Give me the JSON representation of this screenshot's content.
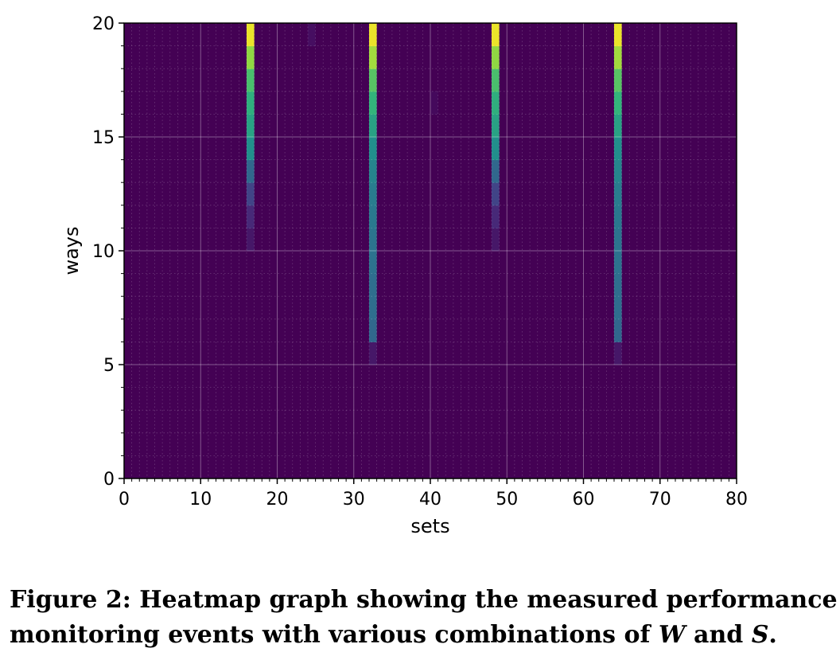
{
  "chart_data": {
    "type": "heatmap",
    "title": "",
    "xlabel": "sets",
    "ylabel": "ways",
    "xlim": [
      0,
      80
    ],
    "ylim": [
      0,
      20
    ],
    "xticks": [
      0,
      10,
      20,
      30,
      40,
      50,
      60,
      70,
      80
    ],
    "yticks": [
      0,
      5,
      10,
      15,
      20
    ],
    "grid": true,
    "colormap": "viridis",
    "value_range": [
      0,
      1
    ],
    "background_value": 0,
    "columns": [
      {
        "set": 16,
        "cells": [
          [
            10,
            0.08
          ],
          [
            11,
            0.15
          ],
          [
            12,
            0.25
          ],
          [
            13,
            0.42
          ],
          [
            14,
            0.62
          ],
          [
            15,
            0.68
          ],
          [
            16,
            0.72
          ],
          [
            17,
            0.78
          ],
          [
            18,
            0.88
          ],
          [
            19,
            0.98
          ]
        ]
      },
      {
        "set": 24,
        "cells": [
          [
            19,
            0.05
          ]
        ]
      },
      {
        "set": 32,
        "cells": [
          [
            5,
            0.08
          ],
          [
            6,
            0.42
          ],
          [
            7,
            0.45
          ],
          [
            8,
            0.45
          ],
          [
            9,
            0.47
          ],
          [
            10,
            0.48
          ],
          [
            11,
            0.5
          ],
          [
            12,
            0.52
          ],
          [
            13,
            0.56
          ],
          [
            14,
            0.62
          ],
          [
            15,
            0.68
          ],
          [
            16,
            0.74
          ],
          [
            17,
            0.8
          ],
          [
            18,
            0.9
          ],
          [
            19,
            0.98
          ]
        ]
      },
      {
        "set": 40,
        "cells": [
          [
            16,
            0.03
          ]
        ]
      },
      {
        "set": 48,
        "cells": [
          [
            10,
            0.08
          ],
          [
            11,
            0.15
          ],
          [
            12,
            0.25
          ],
          [
            13,
            0.42
          ],
          [
            14,
            0.62
          ],
          [
            15,
            0.68
          ],
          [
            16,
            0.72
          ],
          [
            17,
            0.78
          ],
          [
            18,
            0.88
          ],
          [
            19,
            0.98
          ]
        ]
      },
      {
        "set": 64,
        "cells": [
          [
            5,
            0.08
          ],
          [
            6,
            0.42
          ],
          [
            7,
            0.45
          ],
          [
            8,
            0.45
          ],
          [
            9,
            0.47
          ],
          [
            10,
            0.48
          ],
          [
            11,
            0.5
          ],
          [
            12,
            0.52
          ],
          [
            13,
            0.56
          ],
          [
            14,
            0.62
          ],
          [
            15,
            0.68
          ],
          [
            16,
            0.74
          ],
          [
            17,
            0.8
          ],
          [
            18,
            0.9
          ],
          [
            19,
            0.98
          ]
        ]
      }
    ]
  },
  "caption": {
    "line1": "Figure 2: Heatmap graph showing the measured performance",
    "line2_prefix": "monitoring events with various combinations of ",
    "var_w": "W",
    "and_text": " and ",
    "var_s": "S",
    "end": "."
  }
}
